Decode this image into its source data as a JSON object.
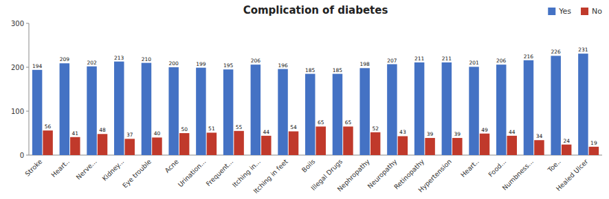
{
  "chart_data": {
    "type": "bar",
    "title": "Complication of diabetes",
    "categories": [
      "Stroke",
      "Heart..",
      "Nerve...",
      "Kidney...",
      "Eye trouble",
      "Acne",
      "Urination...",
      "Frequent...",
      "Itching in...",
      "Itching in feet",
      "Boils",
      "Illegal Drugs",
      "Nephropathy",
      "Neuropathy",
      "Retinopathy",
      "Hypertension",
      "Heart..",
      "Food...",
      "Numbness...",
      "Toe..",
      "Healed Ulcer"
    ],
    "series": [
      {
        "name": "Yes",
        "color": "#4472C4",
        "values": [
          194,
          209,
          202,
          213,
          210,
          200,
          199,
          195,
          206,
          196,
          185,
          185,
          198,
          207,
          211,
          211,
          201,
          206,
          216,
          226,
          231
        ]
      },
      {
        "name": "No",
        "color": "#C0392B",
        "values": [
          56,
          41,
          48,
          37,
          40,
          50,
          51,
          55,
          44,
          54,
          65,
          65,
          52,
          43,
          39,
          39,
          49,
          44,
          34,
          24,
          19
        ]
      }
    ],
    "ylim": [
      0,
      300
    ],
    "yticks": [
      0,
      100,
      200,
      300
    ],
    "data_labels": true,
    "legend": "upper right",
    "grid": false
  }
}
